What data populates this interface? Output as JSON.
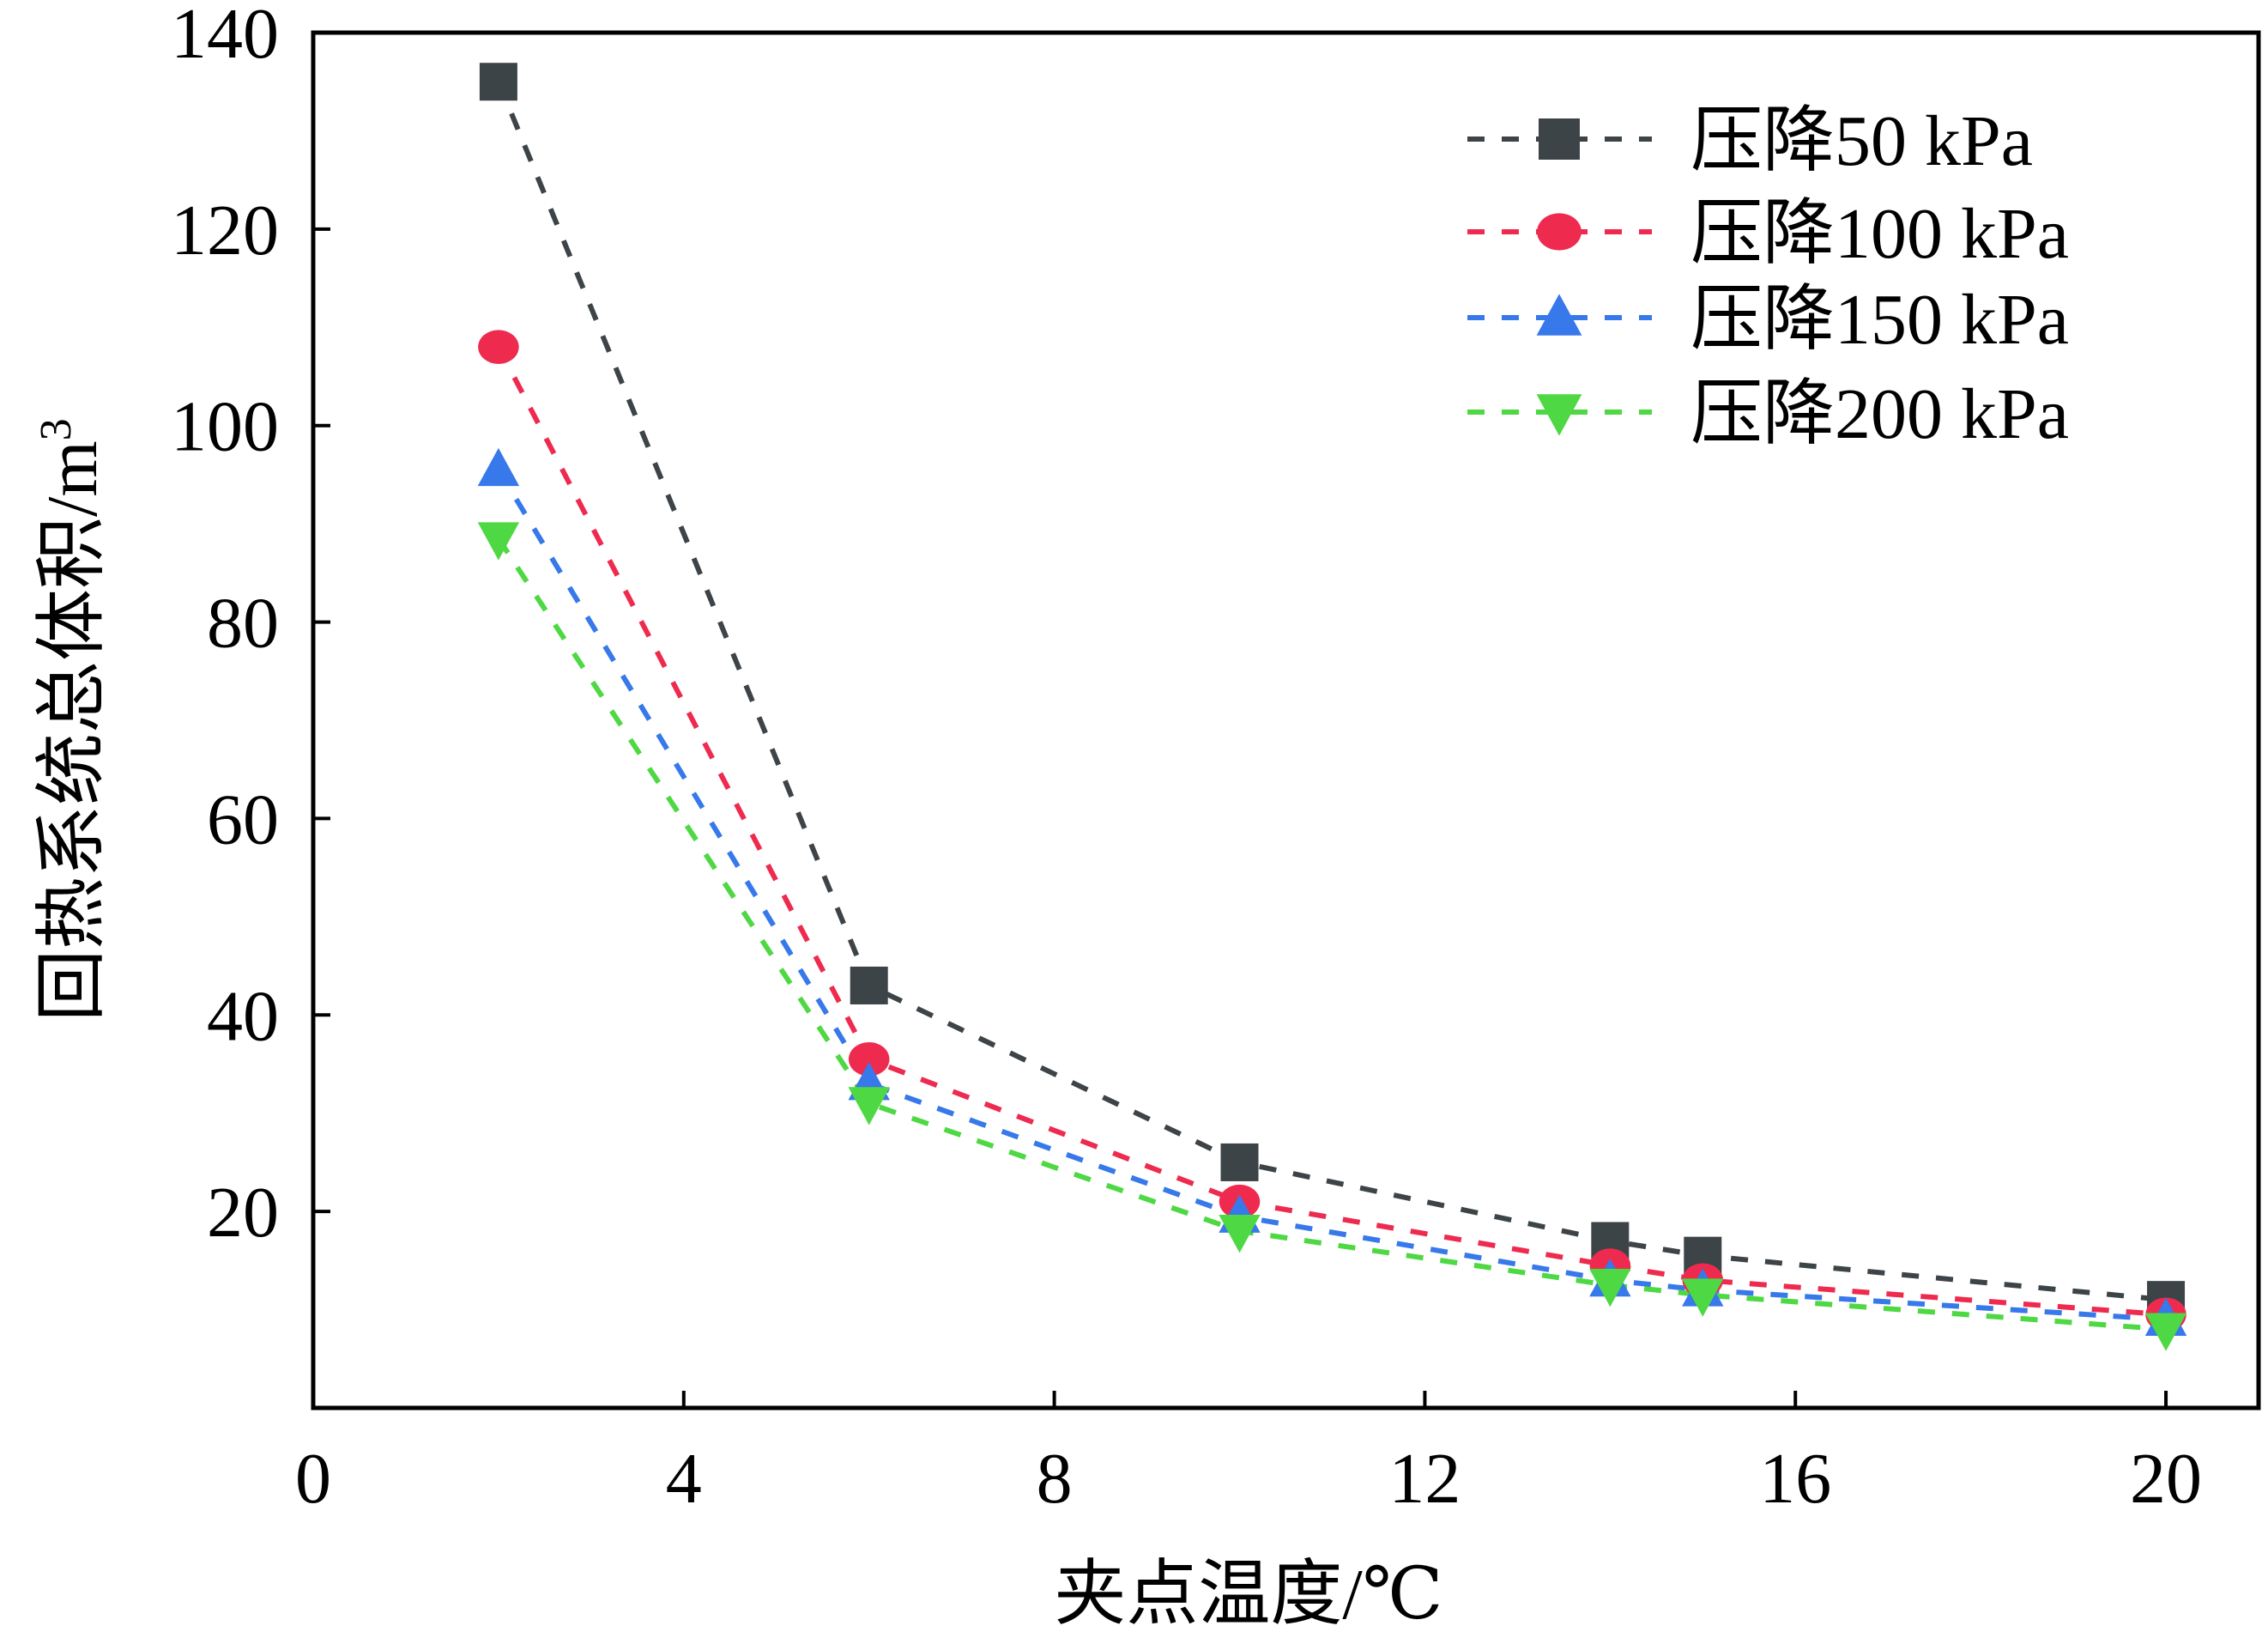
{
  "chart_data": {
    "type": "line",
    "title": "",
    "xlabel": "夹点温度/℃",
    "ylabel": "回热系统总体积/m",
    "ylabel_sup": "3",
    "xlim": [
      0,
      21
    ],
    "ylim": [
      0,
      140
    ],
    "x_ticks": [
      0,
      4,
      8,
      12,
      16,
      20
    ],
    "y_ticks": [
      20,
      40,
      60,
      80,
      100,
      120,
      140
    ],
    "y_axis_floor": 0,
    "grid": false,
    "legend_position": "top-right",
    "x": [
      2,
      6,
      10,
      14,
      15,
      20
    ],
    "series": [
      {
        "name": "压降50 kPa",
        "color": "#3d4448",
        "marker": "square",
        "values": [
          135,
          43,
          25,
          17,
          15.5,
          11
        ]
      },
      {
        "name": "压降100 kPa",
        "color": "#ee2b4f",
        "marker": "circle",
        "values": [
          108,
          35.5,
          21,
          14.5,
          13,
          9.5
        ]
      },
      {
        "name": "压降150 kPa",
        "color": "#3778ea",
        "marker": "triangle-up",
        "values": [
          95.5,
          33,
          19.5,
          13,
          12,
          9
        ]
      },
      {
        "name": "压降200 kPa",
        "color": "#4ed843",
        "marker": "triangle-down",
        "values": [
          88.5,
          31,
          18,
          12.5,
          11.5,
          8
        ]
      }
    ]
  }
}
